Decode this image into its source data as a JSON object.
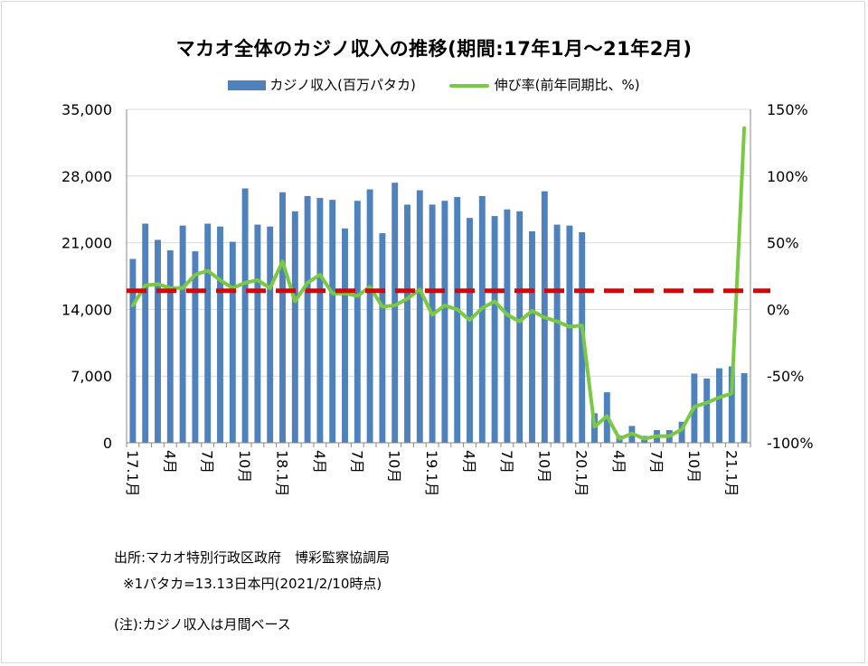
{
  "title": "マカオ全体のカジノ収入の推移(期間:17年1月〜21年2月)",
  "legend": {
    "bar_label": "カジノ収入(百万パタカ)",
    "line_label": "伸び率(前年同期比、%)"
  },
  "notes": {
    "source": "出所:マカオ特別行政区政府　博彩監察協調局",
    "rate": "※1パタカ=13.13日本円(2021/2/10時点)",
    "remark": "(注):カジノ収入は月間ベース"
  },
  "colors": {
    "bar": "#4f81bd",
    "line": "#7ac943",
    "reference": "#e00000",
    "grid": "#d9d9d9"
  },
  "chart_data": {
    "type": "bar",
    "title": "マカオ全体のカジノ収入の推移(期間:17年1月〜21年2月)",
    "categories": [
      "2017-01",
      "2017-02",
      "2017-03",
      "2017-04",
      "2017-05",
      "2017-06",
      "2017-07",
      "2017-08",
      "2017-09",
      "2017-10",
      "2017-11",
      "2017-12",
      "2018-01",
      "2018-02",
      "2018-03",
      "2018-04",
      "2018-05",
      "2018-06",
      "2018-07",
      "2018-08",
      "2018-09",
      "2018-10",
      "2018-11",
      "2018-12",
      "2019-01",
      "2019-02",
      "2019-03",
      "2019-04",
      "2019-05",
      "2019-06",
      "2019-07",
      "2019-08",
      "2019-09",
      "2019-10",
      "2019-11",
      "2019-12",
      "2020-01",
      "2020-02",
      "2020-03",
      "2020-04",
      "2020-05",
      "2020-06",
      "2020-07",
      "2020-08",
      "2020-09",
      "2020-10",
      "2020-11",
      "2020-12",
      "2021-01",
      "2021-02"
    ],
    "x_tick_labels": [
      {
        "index": 0,
        "label": "17.1月"
      },
      {
        "index": 3,
        "label": "4月"
      },
      {
        "index": 6,
        "label": "7月"
      },
      {
        "index": 9,
        "label": "10月"
      },
      {
        "index": 12,
        "label": "18.1月"
      },
      {
        "index": 15,
        "label": "4月"
      },
      {
        "index": 18,
        "label": "7月"
      },
      {
        "index": 21,
        "label": "10月"
      },
      {
        "index": 24,
        "label": "19.1月"
      },
      {
        "index": 27,
        "label": "4月"
      },
      {
        "index": 30,
        "label": "7月"
      },
      {
        "index": 33,
        "label": "10月"
      },
      {
        "index": 36,
        "label": "20.1月"
      },
      {
        "index": 39,
        "label": "4月"
      },
      {
        "index": 42,
        "label": "7月"
      },
      {
        "index": 45,
        "label": "10月"
      },
      {
        "index": 48,
        "label": "21.1月"
      }
    ],
    "series": [
      {
        "name": "カジノ収入(百万パタカ)",
        "type": "bar",
        "axis": "left",
        "values": [
          19300,
          23000,
          21300,
          20200,
          22800,
          20100,
          23000,
          22700,
          21100,
          26700,
          22900,
          22700,
          26300,
          24300,
          25900,
          25700,
          25500,
          22500,
          25400,
          26600,
          22000,
          27300,
          25000,
          26500,
          25000,
          25400,
          25800,
          23600,
          25900,
          23800,
          24500,
          24300,
          22200,
          26400,
          22900,
          22800,
          22100,
          3100,
          5300,
          750,
          1770,
          720,
          1330,
          1330,
          2210,
          7270,
          6750,
          7820,
          8020,
          7310
        ]
      },
      {
        "name": "伸び率(前年同期比、%)",
        "type": "line",
        "axis": "right",
        "values": [
          3,
          18,
          19,
          16,
          16,
          26,
          29,
          22,
          16,
          20,
          22,
          16,
          36,
          6,
          20,
          26,
          12,
          12,
          10,
          17,
          2,
          3,
          8,
          15,
          -4,
          3,
          0,
          -8,
          1,
          6,
          -4,
          -9,
          -1,
          -6,
          -9,
          -13,
          -12,
          -88,
          -80,
          -97,
          -93,
          -97,
          -95,
          -95,
          -90,
          -73,
          -70,
          -66,
          -63,
          136
        ]
      }
    ],
    "reference_line": {
      "axis": "right",
      "value": 14,
      "style": "dashed"
    },
    "y_left": {
      "min": 0,
      "max": 35000,
      "ticks": [
        0,
        7000,
        14000,
        21000,
        28000,
        35000
      ],
      "tick_labels": [
        "0",
        "7,000",
        "14,000",
        "21,000",
        "28,000",
        "35,000"
      ]
    },
    "y_right": {
      "min": -100,
      "max": 150,
      "ticks": [
        -100,
        -50,
        0,
        50,
        100,
        150
      ],
      "tick_labels": [
        "-100%",
        "-50%",
        "0%",
        "50%",
        "100%",
        "150%"
      ]
    },
    "grid": true,
    "legend_position": "top"
  }
}
